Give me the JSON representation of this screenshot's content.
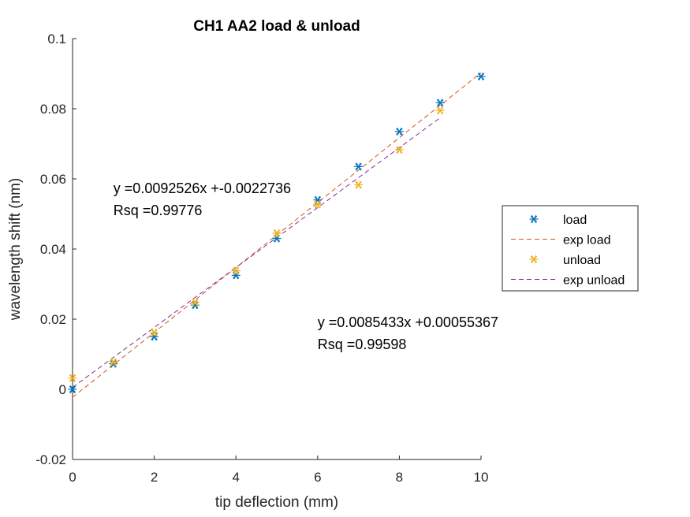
{
  "chart_data": {
    "type": "scatter",
    "title": "CH1 AA2 load & unload",
    "xlabel": "tip deflection (mm)",
    "ylabel": "wavelength shift (nm)",
    "xlim": [
      0,
      10
    ],
    "ylim": [
      -0.02,
      0.1
    ],
    "x_ticks": [
      "0",
      "2",
      "4",
      "6",
      "8",
      "10"
    ],
    "y_ticks": [
      "-0.02",
      "0",
      "0.02",
      "0.04",
      "0.06",
      "0.08",
      "0.1"
    ],
    "grid": false,
    "legend_position": "right",
    "series": [
      {
        "name": "load",
        "kind": "marker",
        "marker": "asterisk",
        "color": "#0072BD",
        "points": [
          [
            0,
            0
          ],
          [
            1,
            0.0073
          ],
          [
            2,
            0.015
          ],
          [
            3,
            0.024
          ],
          [
            4,
            0.0325
          ],
          [
            5,
            0.043
          ],
          [
            6,
            0.054
          ],
          [
            7,
            0.0635
          ],
          [
            8,
            0.0735
          ],
          [
            9,
            0.0817
          ],
          [
            10,
            0.0892
          ]
        ]
      },
      {
        "name": "exp load",
        "kind": "line",
        "dash": true,
        "color": "#D95319",
        "slope": 0.0092526,
        "intercept": -0.0022736,
        "x_range": [
          0,
          10
        ]
      },
      {
        "name": "unload",
        "kind": "marker",
        "marker": "asterisk",
        "color": "#EDB120",
        "points": [
          [
            0,
            0.0032
          ],
          [
            1,
            0.0078
          ],
          [
            2,
            0.0162
          ],
          [
            3,
            0.0248
          ],
          [
            4,
            0.0338
          ],
          [
            5,
            0.0445
          ],
          [
            6,
            0.0527
          ],
          [
            7,
            0.0583
          ],
          [
            8,
            0.0683
          ],
          [
            9,
            0.0795
          ]
        ]
      },
      {
        "name": "exp unload",
        "kind": "line",
        "dash": true,
        "color": "#7E2F8E",
        "slope": 0.0085433,
        "intercept": 0.00055367,
        "x_range": [
          0,
          9
        ]
      }
    ],
    "annotations": [
      {
        "lines": [
          "y =0.0092526x +-0.0022736",
          "Rsq =0.99776"
        ],
        "x": 1.0,
        "y": 0.056
      },
      {
        "lines": [
          "y =0.0085433x +0.00055367",
          "Rsq =0.99598"
        ],
        "x": 6.0,
        "y": 0.0177
      }
    ]
  }
}
